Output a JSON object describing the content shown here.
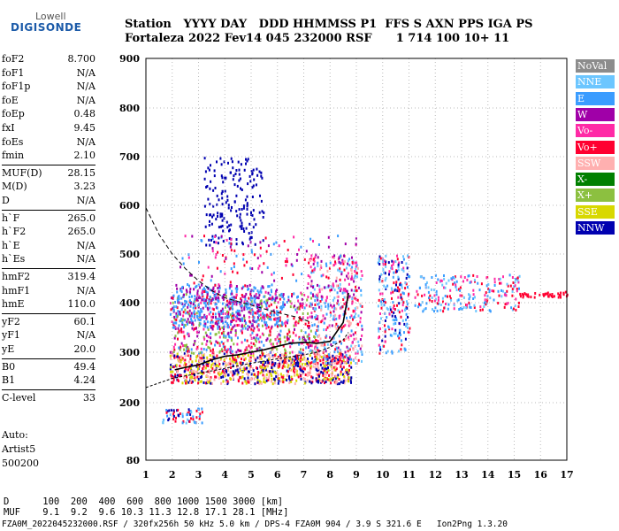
{
  "logo": {
    "line1": "Lowell",
    "line2": "DIGISONDE"
  },
  "header": {
    "line1": "Station   YYYY DAY   DDD HHMMSS P1  FFS S AXN PPS IGA PS",
    "line2": "Fortaleza 2022 Fev14 045 232000 RSF      1 714 100 10+ 11"
  },
  "params": [
    {
      "k": "foF2",
      "v": "8.700"
    },
    {
      "k": "foF1",
      "v": "N/A"
    },
    {
      "k": "foF1p",
      "v": "N/A"
    },
    {
      "k": "foE",
      "v": "N/A"
    },
    {
      "k": "foEp",
      "v": "0.48"
    },
    {
      "k": "fxI",
      "v": "9.45"
    },
    {
      "k": "foEs",
      "v": "N/A"
    },
    {
      "k": "fmin",
      "v": "2.10"
    },
    {
      "k": "MUF(D)",
      "v": "28.15"
    },
    {
      "k": "M(D)",
      "v": "3.23"
    },
    {
      "k": "D",
      "v": "N/A"
    },
    {
      "k": "h`F",
      "v": "265.0"
    },
    {
      "k": "h`F2",
      "v": "265.0"
    },
    {
      "k": "h`E",
      "v": "N/A"
    },
    {
      "k": "h`Es",
      "v": "N/A"
    },
    {
      "k": "hmF2",
      "v": "319.4"
    },
    {
      "k": "hmF1",
      "v": "N/A"
    },
    {
      "k": "hmE",
      "v": "110.0"
    },
    {
      "k": "yF2",
      "v": "60.1"
    },
    {
      "k": "yF1",
      "v": "N/A"
    },
    {
      "k": "yE",
      "v": "20.0"
    },
    {
      "k": "B0",
      "v": "49.4"
    },
    {
      "k": "B1",
      "v": "4.24"
    },
    {
      "k": "C-level",
      "v": "33"
    }
  ],
  "auto": {
    "l1": "Auto:",
    "l2": "Artist5",
    "l3": "500200"
  },
  "legend": [
    {
      "label": "NoVal",
      "color": "#8c8c8c"
    },
    {
      "label": "NNE",
      "color": "#6cc6ff"
    },
    {
      "label": "E",
      "color": "#3a9cff"
    },
    {
      "label": "W",
      "color": "#a000a8"
    },
    {
      "label": "Vo-",
      "color": "#ff2aa6"
    },
    {
      "label": "Vo+",
      "color": "#ff0030"
    },
    {
      "label": "SSW",
      "color": "#ffb0b0"
    },
    {
      "label": "X-",
      "color": "#008000"
    },
    {
      "label": "X+",
      "color": "#8cc040"
    },
    {
      "label": "SSE",
      "color": "#d8d800"
    },
    {
      "label": "NNW",
      "color": "#0000b0"
    }
  ],
  "chart_data": {
    "type": "scatter",
    "x_ticks": [
      "1",
      "2",
      "3",
      "4",
      "5",
      "6",
      "7",
      "8",
      "9",
      "10",
      "11",
      "12",
      "13",
      "14",
      "15",
      "16",
      "17"
    ],
    "y_ticks": [
      "80",
      "200",
      "300",
      "400",
      "500",
      "600",
      "700",
      "800",
      "900"
    ],
    "ylim": [
      80,
      900
    ],
    "xlim": [
      1,
      17
    ],
    "grid": true,
    "traces": [
      {
        "name": "ordinary",
        "points": [
          [
            2.1,
            265
          ],
          [
            2.5,
            270
          ],
          [
            3,
            275
          ],
          [
            3.5,
            285
          ],
          [
            4,
            292
          ],
          [
            4.5,
            295
          ],
          [
            5,
            300
          ],
          [
            5.5,
            305
          ],
          [
            6,
            312
          ],
          [
            6.5,
            318
          ],
          [
            7,
            320
          ],
          [
            7.5,
            318
          ],
          [
            8,
            322
          ],
          [
            8.5,
            360
          ],
          [
            8.7,
            420
          ]
        ]
      },
      {
        "name": "dashed-profile",
        "points": [
          [
            1,
            595
          ],
          [
            1.5,
            540
          ],
          [
            2,
            500
          ],
          [
            2.5,
            470
          ],
          [
            3,
            445
          ],
          [
            3.5,
            425
          ],
          [
            4,
            410
          ],
          [
            5,
            395
          ],
          [
            6,
            380
          ],
          [
            6.8,
            370
          ],
          [
            7.3,
            360
          ]
        ]
      },
      {
        "name": "lower-profile",
        "points": [
          [
            1,
            230
          ],
          [
            2,
            248
          ],
          [
            3,
            258
          ],
          [
            4,
            268
          ],
          [
            5,
            278
          ],
          [
            6,
            287
          ],
          [
            7,
            295
          ],
          [
            7.5,
            300
          ],
          [
            8,
            310
          ],
          [
            8.5,
            325
          ],
          [
            8.7,
            340
          ]
        ]
      }
    ]
  },
  "footer": {
    "line1": "D      100  200  400  600  800 1000 1500 3000 [km]",
    "line2": "MUF    9.1  9.2  9.6 10.3 11.3 12.8 17.1 28.1 [MHz]",
    "line3": "FZA0M_2022045232000.RSF / 320fx256h 50 kHz 5.0 km / DPS-4 FZA0M 904 / 3.9 S 321.6 E   Ion2Png 1.3.20"
  }
}
